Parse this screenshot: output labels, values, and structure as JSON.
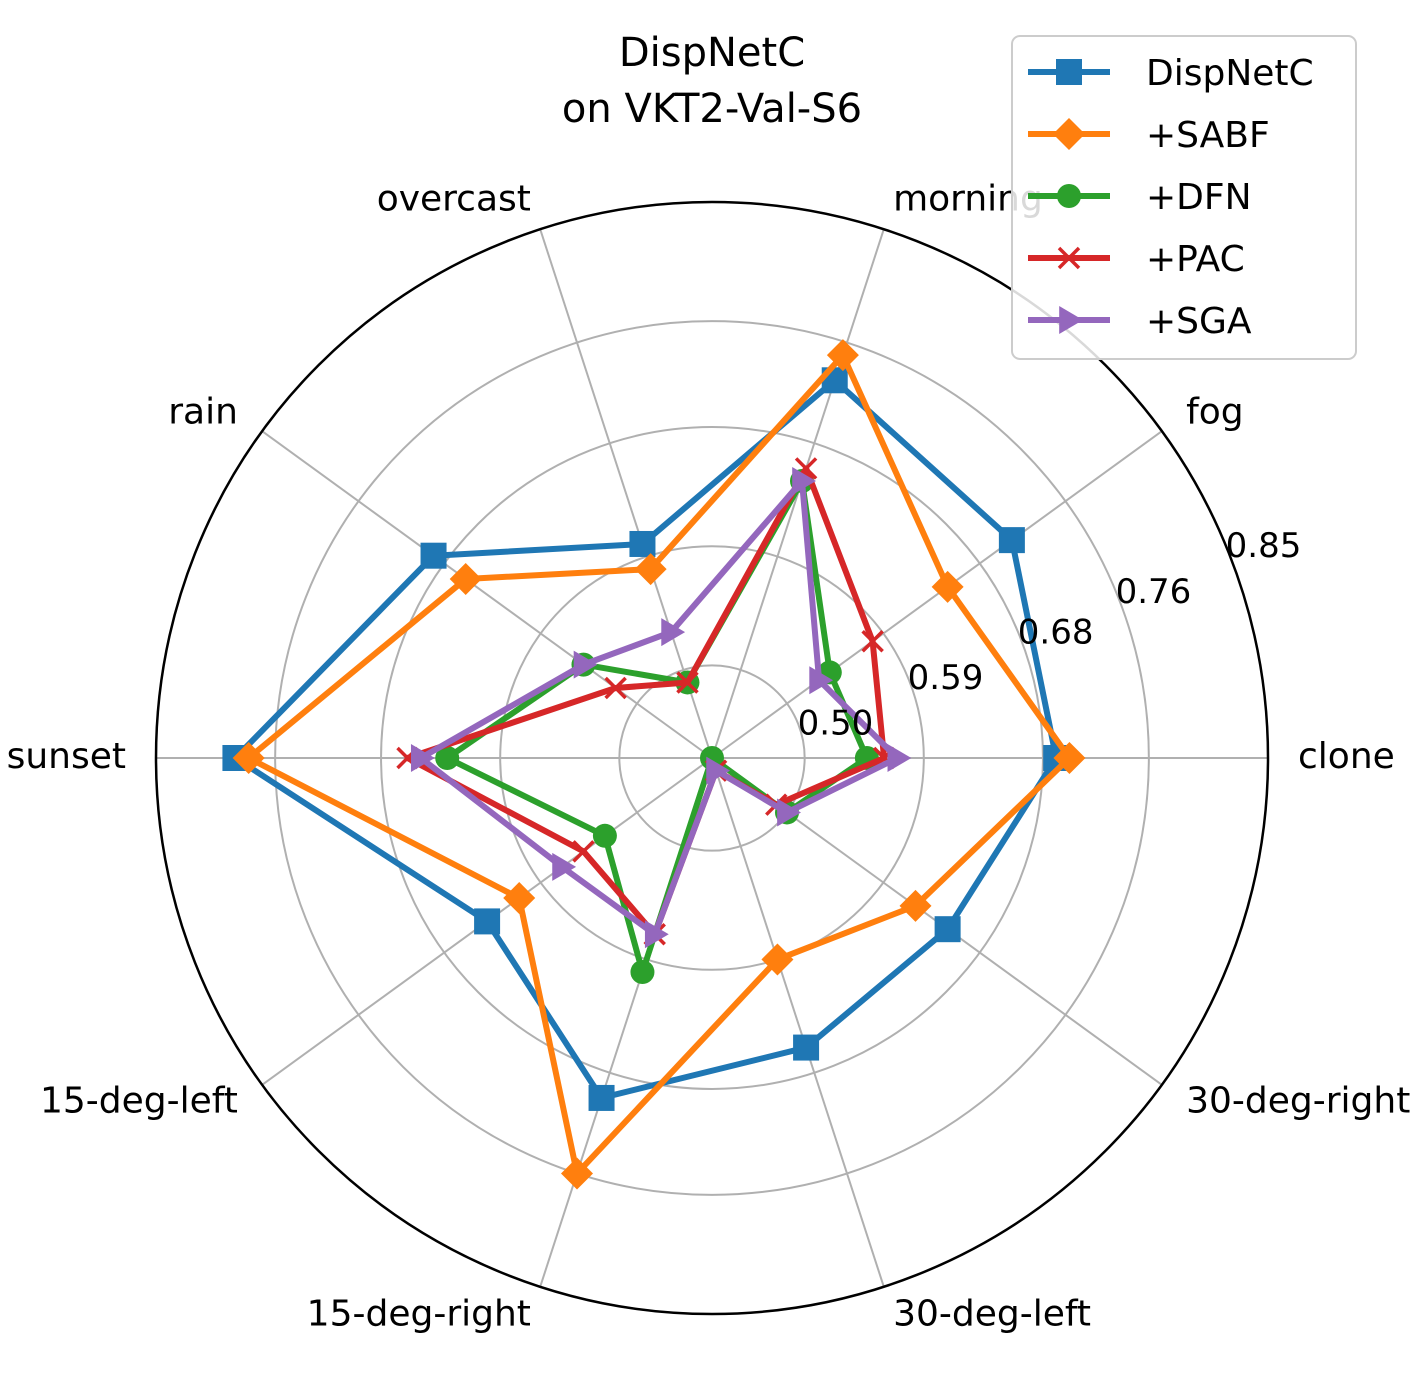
{
  "chart_data": {
    "type": "radar",
    "title": [
      "DispNetC",
      "on VKT2-Val-S6"
    ],
    "categories": [
      "clone",
      "fog",
      "morning",
      "overcast",
      "rain",
      "sunset",
      "15-deg-left",
      "15-deg-right",
      "30-deg-left",
      "30-deg-right"
    ],
    "r_range": [
      0.43,
      0.85
    ],
    "r_ticks": [
      {
        "value": 0.5,
        "label": "0.50"
      },
      {
        "value": 0.59,
        "label": "0.59"
      },
      {
        "value": 0.68,
        "label": "0.68"
      },
      {
        "value": 0.76,
        "label": "0.76"
      },
      {
        "value": 0.85,
        "label": "0.85"
      }
    ],
    "legend_position": "top-right",
    "series": [
      {
        "name": "DispNetC",
        "color": "#1f77b4",
        "marker": "square",
        "values": [
          0.69,
          0.71,
          0.73,
          0.6,
          0.69,
          0.79,
          0.64,
          0.7,
          0.66,
          0.65
        ]
      },
      {
        "name": "+SABF",
        "color": "#ff7f0e",
        "marker": "diamond",
        "values": [
          0.7,
          0.65,
          0.75,
          0.58,
          0.66,
          0.78,
          0.61,
          0.76,
          0.59,
          0.62
        ]
      },
      {
        "name": "+DFN",
        "color": "#2ca02c",
        "marker": "circle",
        "values": [
          0.547,
          0.54,
          0.65,
          0.49,
          0.55,
          0.63,
          0.53,
          0.6,
          0.43,
          0.5
        ]
      },
      {
        "name": "+PAC",
        "color": "#d62728",
        "marker": "x",
        "values": [
          0.56,
          0.58,
          0.66,
          0.49,
          0.52,
          0.66,
          0.55,
          0.57,
          0.44,
          0.49
        ]
      },
      {
        "name": "+SGA",
        "color": "#9467bd",
        "marker": "triangle-right",
        "values": [
          0.57,
          0.53,
          0.65,
          0.53,
          0.55,
          0.65,
          0.57,
          0.57,
          0.44,
          0.5
        ]
      }
    ]
  }
}
